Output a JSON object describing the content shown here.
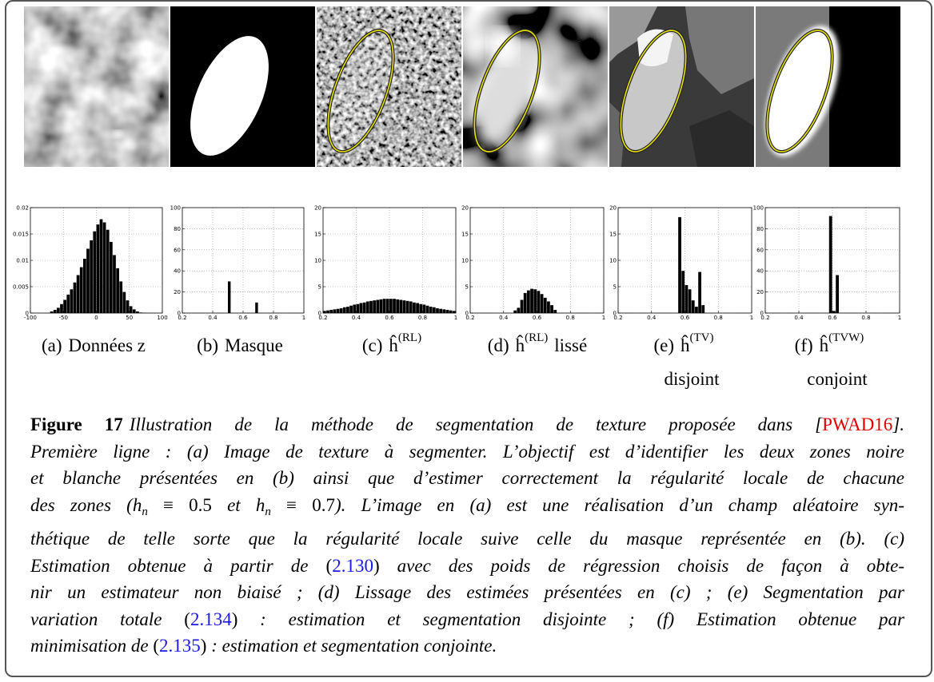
{
  "panels": [
    {
      "label": {
        "letter": "(a)",
        "text": "Données z"
      },
      "histogram": {
        "type": "histogram",
        "xlim": [
          -100,
          100
        ],
        "xticks": [
          -100,
          -50,
          0,
          50,
          100
        ],
        "ylim": [
          0,
          0.02
        ],
        "yticks": [
          0,
          0.005,
          0.01,
          0.015,
          0.02
        ],
        "grid": true,
        "color": "#000000",
        "bins": [
          -70,
          -65,
          -60,
          -55,
          -50,
          -45,
          -40,
          -35,
          -30,
          -25,
          -20,
          -15,
          -10,
          -5,
          0,
          5,
          10,
          15,
          20,
          25,
          30,
          35,
          40,
          45,
          50,
          55,
          60,
          65,
          70,
          75
        ],
        "counts": [
          0.0003,
          0.0006,
          0.001,
          0.0017,
          0.0025,
          0.0035,
          0.0045,
          0.0058,
          0.0072,
          0.0087,
          0.0103,
          0.0122,
          0.0138,
          0.0155,
          0.0168,
          0.0178,
          0.0172,
          0.0158,
          0.0135,
          0.011,
          0.0085,
          0.006,
          0.004,
          0.0024,
          0.0013,
          0.0007,
          0.0003,
          0.0001,
          5e-05
        ]
      }
    },
    {
      "label": {
        "letter": "(b)",
        "text": "Masque"
      },
      "histogram": {
        "type": "histogram",
        "xlim": [
          0.2,
          1
        ],
        "xticks": [
          0.2,
          0.4,
          0.6,
          0.8,
          1
        ],
        "ylim": [
          0,
          100
        ],
        "yticks": [
          0,
          20,
          40,
          60,
          80,
          100
        ],
        "grid": true,
        "color": "#000000",
        "bins": [
          0.2,
          0.22,
          0.24,
          0.26,
          0.28,
          0.3,
          0.32,
          0.34,
          0.36,
          0.38,
          0.4,
          0.42,
          0.44,
          0.46,
          0.48,
          0.5,
          0.52,
          0.54,
          0.56,
          0.58,
          0.6,
          0.62,
          0.64,
          0.66,
          0.68,
          0.7,
          0.72,
          0.74,
          0.76,
          0.78,
          0.8,
          0.82,
          0.84,
          0.86,
          0.88,
          0.9,
          0.92,
          0.94,
          0.96,
          0.98,
          1
        ],
        "counts": [
          0,
          0,
          0,
          0,
          0,
          0,
          0,
          0,
          0,
          0,
          0,
          0,
          0,
          0,
          0,
          30,
          0,
          0,
          0,
          0,
          0,
          0,
          0,
          0,
          10,
          0,
          0,
          0,
          0,
          0,
          0,
          0,
          0,
          0,
          0,
          0,
          0,
          0,
          0,
          0
        ]
      }
    },
    {
      "label": {
        "letter": "(c)",
        "symbol": "ĥ",
        "sup": "(RL)"
      },
      "histogram": {
        "type": "histogram",
        "xlim": [
          0.2,
          1
        ],
        "xticks": [
          0.2,
          0.4,
          0.6,
          0.8,
          1
        ],
        "ylim": [
          0,
          20
        ],
        "yticks": [
          0,
          5,
          10,
          15,
          20
        ],
        "grid": true,
        "color": "#000000",
        "bins": [
          0.2,
          0.22,
          0.24,
          0.26,
          0.28,
          0.3,
          0.32,
          0.34,
          0.36,
          0.38,
          0.4,
          0.42,
          0.44,
          0.46,
          0.48,
          0.5,
          0.52,
          0.54,
          0.56,
          0.58,
          0.6,
          0.62,
          0.64,
          0.66,
          0.68,
          0.7,
          0.72,
          0.74,
          0.76,
          0.78,
          0.8,
          0.82,
          0.84,
          0.86,
          0.88,
          0.9,
          0.92,
          0.94,
          0.96,
          0.98,
          1
        ],
        "counts": [
          0.4,
          0.5,
          0.6,
          0.7,
          0.8,
          0.9,
          1.1,
          1.2,
          1.4,
          1.6,
          1.7,
          1.9,
          2,
          2.2,
          2.3,
          2.4,
          2.5,
          2.6,
          2.7,
          2.7,
          2.7,
          2.7,
          2.6,
          2.5,
          2.4,
          2.3,
          2.2,
          2,
          1.9,
          1.7,
          1.6,
          1.4,
          1.2,
          1.1,
          0.9,
          0.8,
          0.7,
          0.6,
          0.5,
          0.4
        ]
      }
    },
    {
      "label": {
        "letter": "(d)",
        "symbol": "ĥ",
        "sup": "(RL)",
        "text": "lissé"
      },
      "histogram": {
        "type": "histogram",
        "xlim": [
          0.2,
          1
        ],
        "xticks": [
          0.2,
          0.4,
          0.6,
          0.8,
          1
        ],
        "ylim": [
          0,
          20
        ],
        "yticks": [
          0,
          5,
          10,
          15,
          20
        ],
        "grid": true,
        "color": "#000000",
        "bins": [
          0.2,
          0.22,
          0.24,
          0.26,
          0.28,
          0.3,
          0.32,
          0.34,
          0.36,
          0.38,
          0.4,
          0.42,
          0.44,
          0.46,
          0.48,
          0.5,
          0.52,
          0.54,
          0.56,
          0.58,
          0.6,
          0.62,
          0.64,
          0.66,
          0.68,
          0.7,
          0.72,
          0.74,
          0.76,
          0.78,
          0.8,
          0.82,
          0.84,
          0.86,
          0.88,
          0.9,
          0.92,
          0.94,
          0.96,
          0.98,
          1
        ],
        "counts": [
          0,
          0,
          0,
          0,
          0,
          0,
          0,
          0,
          0,
          0,
          0,
          0,
          0,
          0.5,
          1,
          2.5,
          3.8,
          4.3,
          4.6,
          4.5,
          4.2,
          3.6,
          2.9,
          2.2,
          1.5,
          0.6,
          0,
          0,
          0,
          0,
          0,
          0,
          0,
          0,
          0,
          0,
          0,
          0,
          0,
          0
        ]
      }
    },
    {
      "label": {
        "letter": "(e)",
        "symbol": "ĥ",
        "sup": "(TV)",
        "line2": "disjoint"
      },
      "histogram": {
        "type": "histogram",
        "xlim": [
          0.2,
          1
        ],
        "xticks": [
          0.2,
          0.4,
          0.6,
          0.8,
          1
        ],
        "ylim": [
          0,
          20
        ],
        "yticks": [
          0,
          5,
          10,
          15,
          20
        ],
        "grid": true,
        "color": "#000000",
        "bins": [
          0.2,
          0.22,
          0.24,
          0.26,
          0.28,
          0.3,
          0.32,
          0.34,
          0.36,
          0.38,
          0.4,
          0.42,
          0.44,
          0.46,
          0.48,
          0.5,
          0.52,
          0.54,
          0.56,
          0.58,
          0.6,
          0.62,
          0.64,
          0.66,
          0.68,
          0.7,
          0.72,
          0.74,
          0.76,
          0.78,
          0.8,
          0.82,
          0.84,
          0.86,
          0.88,
          0.9,
          0.92,
          0.94,
          0.96,
          0.98,
          1
        ],
        "counts": [
          0,
          0,
          0,
          0,
          0,
          0,
          0,
          0,
          0,
          0,
          0,
          0,
          0,
          0,
          0,
          0,
          0,
          0,
          18.2,
          8,
          5.3,
          4.5,
          2.4,
          1.2,
          7.8,
          1.5,
          0,
          0,
          0,
          0,
          0,
          0,
          0,
          0,
          0,
          0,
          0,
          0,
          0,
          0
        ]
      }
    },
    {
      "label": {
        "letter": "(f)",
        "symbol": "ĥ",
        "sup": "(TVW)",
        "line2": "conjoint"
      },
      "histogram": {
        "type": "histogram",
        "xlim": [
          0.2,
          1
        ],
        "xticks": [
          0.2,
          0.4,
          0.6,
          0.8,
          1
        ],
        "ylim": [
          0,
          100
        ],
        "yticks": [
          0,
          20,
          40,
          60,
          80,
          100
        ],
        "grid": true,
        "color": "#000000",
        "bins": [
          0.2,
          0.22,
          0.24,
          0.26,
          0.28,
          0.3,
          0.32,
          0.34,
          0.36,
          0.38,
          0.4,
          0.42,
          0.44,
          0.46,
          0.48,
          0.5,
          0.52,
          0.54,
          0.56,
          0.58,
          0.6,
          0.62,
          0.64,
          0.66,
          0.68,
          0.7,
          0.72,
          0.74,
          0.76,
          0.78,
          0.8,
          0.82,
          0.84,
          0.86,
          0.88,
          0.9,
          0.92,
          0.94,
          0.96,
          0.98,
          1
        ],
        "counts": [
          0,
          0,
          0,
          0,
          0,
          0,
          0,
          0,
          0,
          0,
          0,
          0,
          0,
          0,
          0,
          0,
          0,
          0,
          0,
          92,
          2,
          36,
          0,
          0,
          0,
          0,
          0,
          0,
          0,
          0,
          0,
          0,
          0,
          0,
          0,
          0,
          0,
          0,
          0,
          0
        ]
      }
    }
  ],
  "caption": {
    "lines": [
      [
        {
          "text": "Figure 17",
          "style": "bold"
        },
        {
          "text": "Illustration de la méthode de segmentation de texture proposée dans [",
          "style": "italic"
        },
        {
          "text": "PWAD16",
          "style": "cite"
        },
        {
          "text": "].",
          "style": "italic"
        }
      ],
      [
        {
          "text": "Première ligne : (a) Image de texture à segmenter. L’objectif est d’identifier les deux zones noire",
          "style": "italic"
        }
      ],
      [
        {
          "text": "et blanche présentées en (b) ainsi que d’estimer correctement la régularité locale de chacune",
          "style": "italic"
        }
      ],
      [
        {
          "text": "des zones (",
          "style": "italic"
        },
        {
          "text": "h",
          "style": "italic"
        },
        {
          "text": "n",
          "style": "sub"
        },
        {
          "text": " ≡ 0.5",
          "style": "upright"
        },
        {
          "text": " et ",
          "style": "italic"
        },
        {
          "text": "h",
          "style": "italic"
        },
        {
          "text": "n",
          "style": "sub"
        },
        {
          "text": " ≡ 0.7",
          "style": "upright"
        },
        {
          "text": "). L’image en (a) est une réalisation d’un champ aléatoire syn-",
          "style": "italic"
        }
      ],
      [
        {
          "text": "thétique de telle sorte que la régularité locale suive celle du masque représentée en (b). (c)",
          "style": "italic"
        }
      ],
      [
        {
          "text": "Estimation obtenue à partir de ",
          "style": "italic"
        },
        {
          "text": "(",
          "style": "upright"
        },
        {
          "text": "2.130",
          "style": "ref"
        },
        {
          "text": ")",
          "style": "upright"
        },
        {
          "text": " avec des poids de régression choisis de façon à obte-",
          "style": "italic"
        }
      ],
      [
        {
          "text": "nir un estimateur non biaisé ; (d) Lissage des estimées présentées en (c) ; (e) Segmentation par",
          "style": "italic"
        }
      ],
      [
        {
          "text": "variation totale ",
          "style": "italic"
        },
        {
          "text": "(",
          "style": "upright"
        },
        {
          "text": "2.134",
          "style": "ref"
        },
        {
          "text": ")",
          "style": "upright"
        },
        {
          "text": " : estimation et segmentation disjointe ; (f) Estimation obtenue par",
          "style": "italic"
        }
      ],
      [
        {
          "text": "minimisation de ",
          "style": "italic"
        },
        {
          "text": "(",
          "style": "upright"
        },
        {
          "text": "2.135",
          "style": "ref"
        },
        {
          "text": ")",
          "style": "upright"
        },
        {
          "text": " : estimation et segmentation conjointe.",
          "style": "italic"
        }
      ]
    ]
  }
}
